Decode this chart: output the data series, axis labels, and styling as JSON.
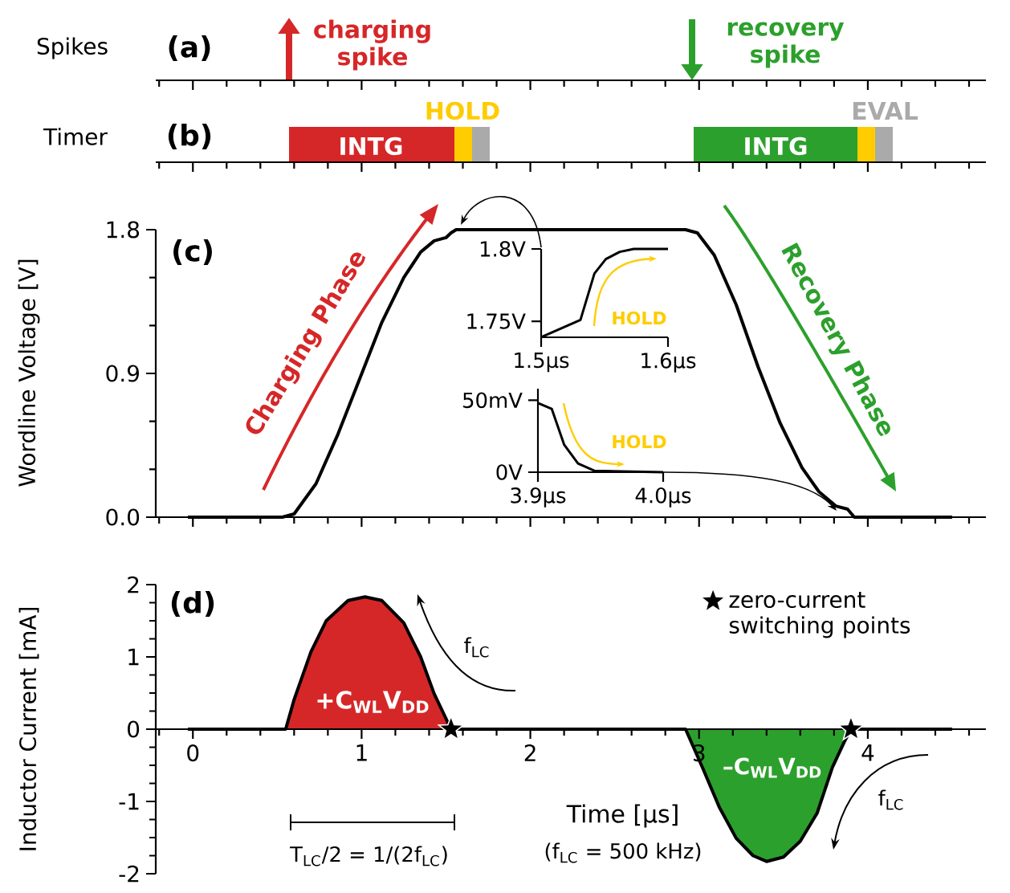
{
  "chart_data": [
    {
      "type": "other",
      "title": "(a)",
      "ylabel": "Spikes",
      "annotations": [
        "charging spike",
        "recovery spike"
      ]
    },
    {
      "type": "other",
      "title": "(b)",
      "ylabel": "Timer",
      "annotations": [
        "INTG",
        "HOLD",
        "INTG",
        "EVAL"
      ]
    },
    {
      "type": "line",
      "title": "(c)",
      "ylabel": "Wordline Voltage [V]",
      "tick_labels": "y",
      "xlim": [
        -0.22,
        4.7
      ],
      "ylim": [
        0,
        1.8
      ],
      "xticks": [
        {
          "value": -0.2,
          "label": null
        },
        {
          "value": 0,
          "label": null
        },
        {
          "value": 0.2,
          "label": null
        },
        {
          "value": 0.4,
          "label": null
        },
        {
          "value": 0.6,
          "label": null
        },
        {
          "value": 0.8,
          "label": null
        },
        {
          "value": 1,
          "label": null
        },
        {
          "value": 1.2,
          "label": null
        },
        {
          "value": 1.4,
          "label": null
        },
        {
          "value": 1.6,
          "label": null
        },
        {
          "value": 1.8,
          "label": null
        },
        {
          "value": 2,
          "label": null
        },
        {
          "value": 2.2,
          "label": null
        },
        {
          "value": 2.4,
          "label": null
        },
        {
          "value": 2.6,
          "label": null
        },
        {
          "value": 2.8,
          "label": null
        },
        {
          "value": 3,
          "label": null
        },
        {
          "value": 3.2,
          "label": null
        },
        {
          "value": 3.4,
          "label": null
        },
        {
          "value": 3.6,
          "label": null
        },
        {
          "value": 3.8,
          "label": null
        },
        {
          "value": 4,
          "label": null
        },
        {
          "value": 4.2,
          "label": null
        },
        {
          "value": 4.4,
          "label": null
        },
        {
          "value": 4.6,
          "label": null
        }
      ],
      "yticks": [
        {
          "value": 0,
          "label": "0.0"
        },
        {
          "value": 0.3,
          "label": null
        },
        {
          "value": 0.6,
          "label": null
        },
        0.9,
        {
          "value": 1.2,
          "label": null
        },
        {
          "value": 1.5,
          "label": null
        },
        1.8
      ],
      "annotations": [
        "Charging Phase",
        "Recovery Phase"
      ],
      "series": [
        {
          "color": "#000000",
          "x": [
            -0.03,
            0.53,
            0.6,
            0.73,
            0.86,
            0.99,
            1.12,
            1.25,
            1.35,
            1.43,
            1.5,
            1.53,
            1.56,
            2.92,
            2.99,
            3.09,
            3.22,
            3.35,
            3.48,
            3.61,
            3.71,
            3.81,
            3.88,
            3.92,
            4.5
          ],
          "values": [
            0,
            0,
            0.02,
            0.21,
            0.52,
            0.87,
            1.22,
            1.5,
            1.66,
            1.73,
            1.75,
            1.78,
            1.8,
            1.8,
            1.78,
            1.64,
            1.33,
            0.94,
            0.59,
            0.31,
            0.16,
            0.07,
            0.05,
            0,
            0
          ]
        }
      ]
    },
    {
      "type": "line",
      "xlim": [
        1.5,
        1.6
      ],
      "ylim": [
        1.739,
        1.8
      ],
      "xticks": [
        {
          "value": 1.5,
          "label": "1.5µs"
        },
        {
          "value": 1.6,
          "label": "1.6µs"
        }
      ],
      "yticks": [
        {
          "value": 1.75,
          "label": "1.75V"
        },
        {
          "value": 1.8,
          "label": "1.8V"
        }
      ],
      "annotations": [
        "HOLD"
      ],
      "series": [
        {
          "color": "#000000",
          "x": [
            1.5,
            1.531,
            1.542,
            1.551,
            1.562,
            1.573,
            1.6
          ],
          "values": [
            1.739,
            1.751,
            1.783,
            1.793,
            1.798,
            1.8,
            1.8
          ]
        }
      ]
    },
    {
      "type": "line",
      "xlim": [
        3.9,
        4.0
      ],
      "ylim": [
        0,
        58
      ],
      "xticks": [
        {
          "value": 3.9,
          "label": "3.9µs"
        },
        {
          "value": 4.0,
          "label": "4.0µs"
        }
      ],
      "yticks": [
        {
          "value": 0,
          "label": "0V"
        },
        {
          "value": 50,
          "label": "50mV"
        }
      ],
      "annotations": [
        "HOLD"
      ],
      "series": [
        {
          "color": "#000000",
          "x": [
            3.9,
            3.911,
            3.921,
            3.932,
            3.945,
            4.0
          ],
          "values": [
            48,
            44,
            19,
            6,
            1,
            0
          ]
        }
      ]
    },
    {
      "type": "line",
      "title": "(d)",
      "ylabel": "Inductor Current [mA]",
      "xlabel": "Time [µs]",
      "legend": "top right",
      "xlim": [
        -0.22,
        4.7
      ],
      "ylim": [
        -2,
        2
      ],
      "xticks": [
        {
          "value": -0.2,
          "label": null
        },
        0,
        {
          "value": 0.2,
          "label": null
        },
        {
          "value": 0.4,
          "label": null
        },
        {
          "value": 0.6,
          "label": null
        },
        {
          "value": 0.8,
          "label": null
        },
        1,
        {
          "value": 1.2,
          "label": null
        },
        {
          "value": 1.4,
          "label": null
        },
        {
          "value": 1.6,
          "label": null
        },
        {
          "value": 1.8,
          "label": null
        },
        2,
        {
          "value": 2.2,
          "label": null
        },
        {
          "value": 2.4,
          "label": null
        },
        {
          "value": 2.6,
          "label": null
        },
        {
          "value": 2.8,
          "label": null
        },
        3,
        {
          "value": 3.2,
          "label": null
        },
        {
          "value": 3.4,
          "label": null
        },
        {
          "value": 3.6,
          "label": null
        },
        {
          "value": 3.8,
          "label": null
        },
        4,
        {
          "value": 4.2,
          "label": null
        },
        {
          "value": 4.4,
          "label": null
        },
        {
          "value": 4.6,
          "label": null
        }
      ],
      "yticks": [
        -2,
        {
          "value": -1.75,
          "label": null
        },
        {
          "value": -1.5,
          "label": null
        },
        {
          "value": -1.25,
          "label": null
        },
        -1,
        {
          "value": -0.75,
          "label": null
        },
        {
          "value": -0.5,
          "label": null
        },
        {
          "value": -0.25,
          "label": null
        },
        0,
        {
          "value": 0.25,
          "label": null
        },
        {
          "value": 0.5,
          "label": null
        },
        {
          "value": 0.75,
          "label": null
        },
        1,
        {
          "value": 1.25,
          "label": null
        },
        {
          "value": 1.5,
          "label": null
        },
        {
          "value": 1.75,
          "label": null
        },
        2
      ],
      "annotations": [
        "+C$_{WL}$V$_{DD}$",
        "–C$_{WL}$V$_{DD}$",
        "f$_{LC}$",
        "f$_{LC}$",
        "T$_{LC}$/2 = 1/(2f$_{LC}$)",
        "(f$_{LC}$ = 500 kHz)"
      ],
      "series": [
        {
          "type": "area",
          "color": "#d62728",
          "x": [
            0.55,
            0.6,
            0.7,
            0.79,
            0.92,
            1.02,
            1.12,
            1.25,
            1.35,
            1.43,
            1.53
          ],
          "values": [
            0,
            0.41,
            1.07,
            1.5,
            1.78,
            1.83,
            1.78,
            1.47,
            1.0,
            0.49,
            0
          ]
        },
        {
          "type": "area",
          "color": "#2ca02c",
          "x": [
            2.92,
            3.02,
            3.12,
            3.22,
            3.32,
            3.4,
            3.5,
            3.6,
            3.7,
            3.79,
            3.86,
            3.9
          ],
          "values": [
            0,
            -0.53,
            -1.08,
            -1.51,
            -1.75,
            -1.83,
            -1.77,
            -1.55,
            -1.16,
            -0.53,
            -0.18,
            0
          ]
        },
        {
          "type": "line",
          "color": "#000000",
          "x": [
            -0.03,
            0.55,
            0.6,
            0.7,
            0.79,
            0.92,
            1.02,
            1.12,
            1.25,
            1.35,
            1.43,
            1.53,
            2.92,
            3.02,
            3.12,
            3.22,
            3.32,
            3.4,
            3.5,
            3.6,
            3.7,
            3.79,
            3.86,
            3.9,
            4.5
          ],
          "values": [
            0,
            0,
            0.41,
            1.07,
            1.5,
            1.78,
            1.83,
            1.78,
            1.47,
            1.0,
            0.49,
            0,
            0,
            -0.53,
            -1.08,
            -1.51,
            -1.75,
            -1.83,
            -1.77,
            -1.55,
            -1.16,
            -0.53,
            -0.18,
            0,
            0
          ]
        },
        {
          "type": "scatter",
          "name": "zero-current switching points",
          "color": "#000000",
          "marker": "star",
          "x": [
            1.53,
            3.9
          ],
          "values": [
            0,
            0
          ]
        }
      ]
    }
  ]
}
